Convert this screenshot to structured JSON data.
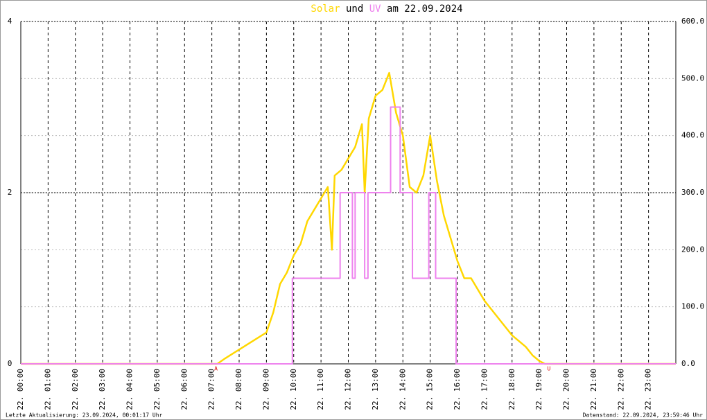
{
  "chart_data": {
    "type": "line",
    "title_parts": [
      {
        "text": "Solar",
        "color": "#ffd700"
      },
      {
        "text": "und",
        "color": "#000000"
      },
      {
        "text": "UV",
        "color": "#ee82ee"
      },
      {
        "text": "am 22.09.2024",
        "color": "#000000"
      }
    ],
    "xlim": [
      0,
      24
    ],
    "xticks": [
      {
        "value": 0,
        "label": "22. 00:00"
      },
      {
        "value": 1,
        "label": "22. 01:00"
      },
      {
        "value": 2,
        "label": "22. 02:00"
      },
      {
        "value": 3,
        "label": "22. 03:00"
      },
      {
        "value": 4,
        "label": "22. 04:00"
      },
      {
        "value": 5,
        "label": "22. 05:00"
      },
      {
        "value": 6,
        "label": "22. 06:00"
      },
      {
        "value": 7,
        "label": "22. 07:00"
      },
      {
        "value": 8,
        "label": "22. 08:00"
      },
      {
        "value": 9,
        "label": "22. 09:00"
      },
      {
        "value": 10,
        "label": "22. 10:00"
      },
      {
        "value": 11,
        "label": "22. 11:00"
      },
      {
        "value": 12,
        "label": "22. 12:00"
      },
      {
        "value": 13,
        "label": "22. 13:00"
      },
      {
        "value": 14,
        "label": "22. 14:00"
      },
      {
        "value": 15,
        "label": "22. 15:00"
      },
      {
        "value": 16,
        "label": "22. 16:00"
      },
      {
        "value": 17,
        "label": "22. 17:00"
      },
      {
        "value": 18,
        "label": "22. 18:00"
      },
      {
        "value": 19,
        "label": "22. 19:00"
      },
      {
        "value": 20,
        "label": "22. 20:00"
      },
      {
        "value": 21,
        "label": "22. 21:00"
      },
      {
        "value": 22,
        "label": "22. 22:00"
      },
      {
        "value": 23,
        "label": "22. 23:00"
      }
    ],
    "ylim": [
      0,
      4
    ],
    "yticks": [
      0,
      2,
      4
    ],
    "y2lim": [
      0,
      600
    ],
    "y2ticks": [
      {
        "value": 0,
        "label": "0.0"
      },
      {
        "value": 100,
        "label": "100.0"
      },
      {
        "value": 200,
        "label": "200.0"
      },
      {
        "value": 300,
        "label": "300.0"
      },
      {
        "value": 400,
        "label": "400.0"
      },
      {
        "value": 500,
        "label": "500.0"
      },
      {
        "value": 600,
        "label": "600.0"
      }
    ],
    "grid": true,
    "series": [
      {
        "name": "Solar",
        "color": "#ffd700",
        "axis": "y2",
        "x": [
          0,
          7.2,
          7.5,
          8.0,
          8.5,
          9.0,
          9.25,
          9.5,
          9.75,
          10.0,
          10.25,
          10.5,
          10.75,
          11.0,
          11.25,
          11.4,
          11.5,
          11.75,
          12.0,
          12.25,
          12.5,
          12.6,
          12.75,
          13.0,
          13.25,
          13.5,
          13.75,
          14.0,
          14.25,
          14.5,
          14.75,
          15.0,
          15.25,
          15.5,
          15.75,
          16.0,
          16.25,
          16.5,
          16.75,
          17.0,
          17.25,
          17.5,
          17.75,
          18.0,
          18.25,
          18.5,
          18.75,
          19.0,
          19.2,
          24
        ],
        "values": [
          0,
          0,
          10,
          25,
          40,
          55,
          90,
          140,
          160,
          190,
          210,
          250,
          270,
          290,
          310,
          200,
          330,
          340,
          360,
          380,
          420,
          300,
          430,
          470,
          480,
          510,
          440,
          400,
          310,
          300,
          330,
          400,
          320,
          260,
          220,
          180,
          150,
          150,
          130,
          110,
          95,
          80,
          65,
          50,
          40,
          30,
          15,
          5,
          0,
          0
        ]
      },
      {
        "name": "UV",
        "color": "#ee82ee",
        "step": true,
        "x": [
          0,
          9.95,
          11.7,
          12.15,
          12.25,
          12.6,
          12.72,
          13.55,
          13.9,
          14.35,
          14.95,
          15.2,
          15.95,
          24
        ],
        "values": [
          0,
          1,
          2,
          1,
          2,
          1,
          2,
          3,
          2,
          1,
          2,
          1,
          0,
          0
        ]
      }
    ],
    "annotations": [
      {
        "text": "A",
        "x": 7.15
      },
      {
        "text": "U",
        "x": 19.35
      }
    ],
    "footer_left": "Letzte Aktualisierung: 23.09.2024, 00:01:17 Uhr",
    "footer_right": "Datenstand: 22.09.2024, 23:59:46 Uhr"
  }
}
